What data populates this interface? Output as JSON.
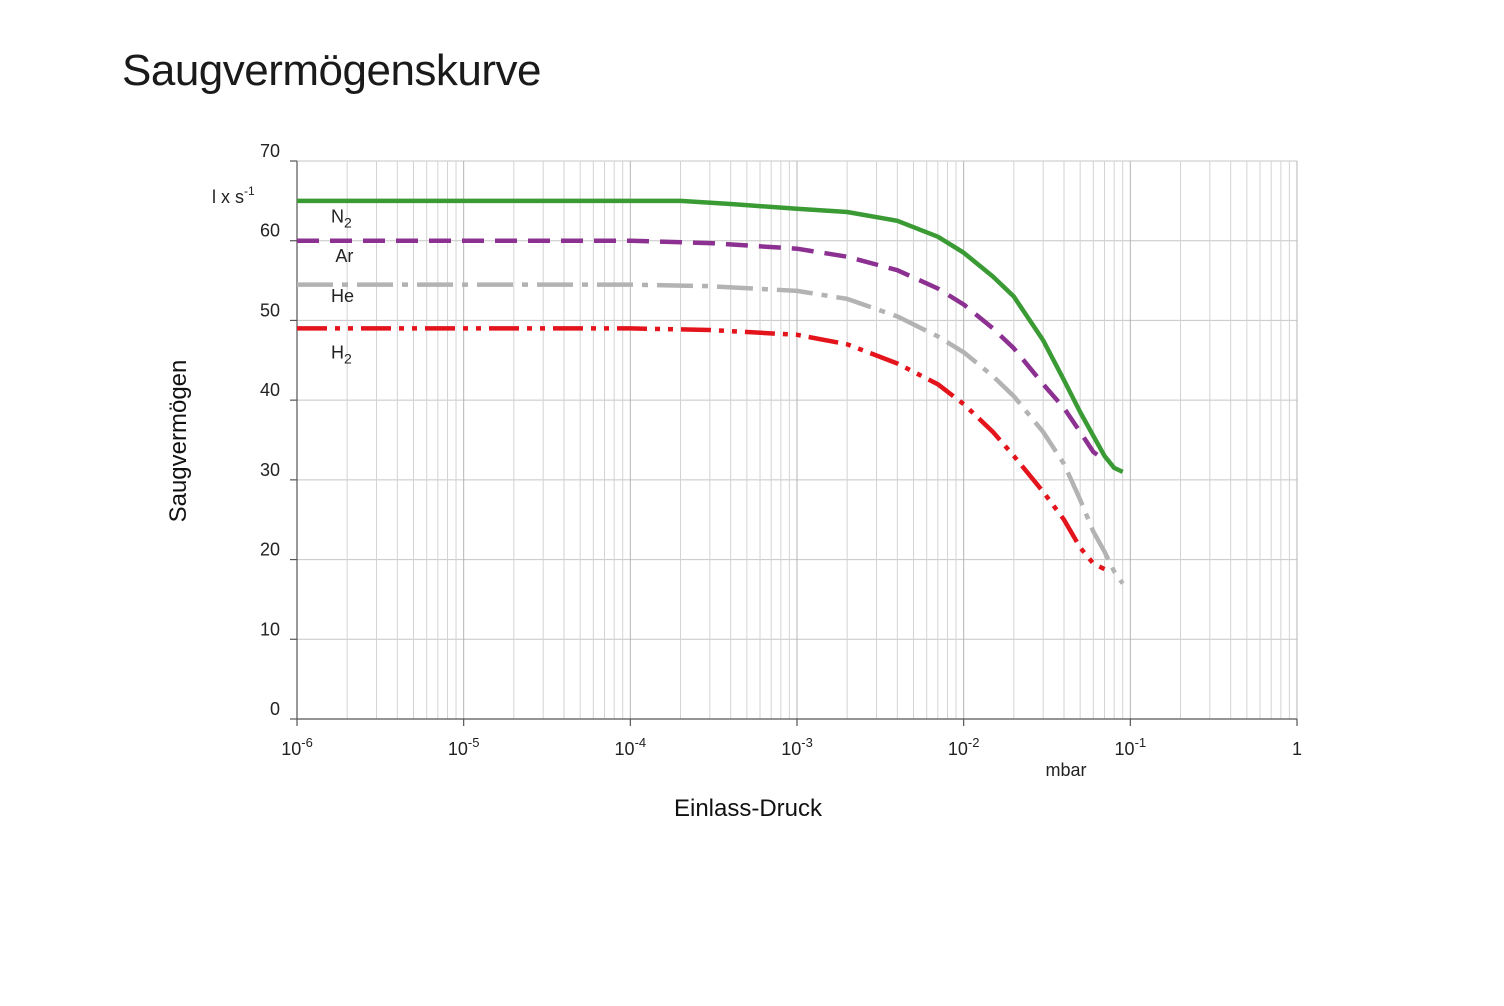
{
  "title": "Saugvermögenskurve",
  "chart_data": {
    "type": "line",
    "x_scale": "log",
    "x_unit_label": "mbar",
    "xlabel": "Einlass-Druck",
    "ylabel": "Saugvermögen",
    "y_unit_label": "l x s",
    "y_unit_exponent": "-1",
    "xlim": [
      1e-06,
      1
    ],
    "ylim": [
      0,
      70
    ],
    "grid": true,
    "x_ticks": [
      {
        "value": 1e-06,
        "base": "10",
        "exp": "-6"
      },
      {
        "value": 1e-05,
        "base": "10",
        "exp": "-5"
      },
      {
        "value": 0.0001,
        "base": "10",
        "exp": "-4"
      },
      {
        "value": 0.001,
        "base": "10",
        "exp": "-3"
      },
      {
        "value": 0.01,
        "base": "10",
        "exp": "-2"
      },
      {
        "value": 0.1,
        "base": "10",
        "exp": "-1"
      },
      {
        "value": 1,
        "base": "1",
        "exp": ""
      }
    ],
    "y_ticks": [
      {
        "value": 0,
        "label": "0"
      },
      {
        "value": 10,
        "label": "10"
      },
      {
        "value": 20,
        "label": "20"
      },
      {
        "value": 30,
        "label": "30"
      },
      {
        "value": 40,
        "label": "40"
      },
      {
        "value": 50,
        "label": "50"
      },
      {
        "value": 60,
        "label": "60"
      },
      {
        "value": 70,
        "label": "70"
      }
    ],
    "series": [
      {
        "name": "N2",
        "label_base": "N",
        "label_sub": "2",
        "label_anchor": [
          1.6e-06,
          62.3
        ],
        "color": "#3a9b35",
        "dash": "",
        "points": [
          [
            1e-06,
            65
          ],
          [
            2e-05,
            65
          ],
          [
            0.0001,
            65
          ],
          [
            0.0002,
            65
          ],
          [
            0.0004,
            64.6
          ],
          [
            0.001,
            64
          ],
          [
            0.002,
            63.6
          ],
          [
            0.004,
            62.5
          ],
          [
            0.007,
            60.5
          ],
          [
            0.01,
            58.5
          ],
          [
            0.015,
            55.5
          ],
          [
            0.02,
            53
          ],
          [
            0.03,
            47.5
          ],
          [
            0.04,
            42.5
          ],
          [
            0.05,
            38.5
          ],
          [
            0.06,
            35.5
          ],
          [
            0.07,
            33
          ],
          [
            0.08,
            31.5
          ],
          [
            0.09,
            31
          ]
        ]
      },
      {
        "name": "Ar",
        "label_base": "Ar",
        "label_sub": "",
        "label_anchor": [
          1.7e-06,
          57.3
        ],
        "color": "#8c3191",
        "dash": "22 11",
        "points": [
          [
            1e-06,
            60
          ],
          [
            2e-05,
            60
          ],
          [
            0.0001,
            60
          ],
          [
            0.0003,
            59.7
          ],
          [
            0.001,
            59
          ],
          [
            0.002,
            58
          ],
          [
            0.004,
            56.3
          ],
          [
            0.007,
            54
          ],
          [
            0.01,
            52
          ],
          [
            0.015,
            49
          ],
          [
            0.02,
            46.5
          ],
          [
            0.03,
            42
          ],
          [
            0.04,
            39
          ],
          [
            0.05,
            36
          ],
          [
            0.06,
            33.5
          ],
          [
            0.07,
            32.5
          ]
        ]
      },
      {
        "name": "He",
        "label_base": "He",
        "label_sub": "",
        "label_anchor": [
          1.6e-06,
          52.3
        ],
        "color": "#b3b3b3",
        "dash": "36 9 6 9",
        "points": [
          [
            1e-06,
            54.5
          ],
          [
            2e-05,
            54.5
          ],
          [
            0.0001,
            54.5
          ],
          [
            0.0003,
            54.3
          ],
          [
            0.001,
            53.7
          ],
          [
            0.002,
            52.7
          ],
          [
            0.004,
            50.5
          ],
          [
            0.007,
            48
          ],
          [
            0.01,
            46
          ],
          [
            0.015,
            43
          ],
          [
            0.02,
            40.5
          ],
          [
            0.03,
            36
          ],
          [
            0.04,
            32
          ],
          [
            0.05,
            27.5
          ],
          [
            0.06,
            23.5
          ],
          [
            0.07,
            21
          ],
          [
            0.08,
            18.5
          ],
          [
            0.09,
            17
          ]
        ]
      },
      {
        "name": "H2",
        "label_base": "H",
        "label_sub": "2",
        "label_anchor": [
          1.6e-06,
          45.2
        ],
        "color": "#e3141b",
        "dash": "30 8 5 8 5 8",
        "points": [
          [
            1e-06,
            49
          ],
          [
            2e-05,
            49
          ],
          [
            0.0001,
            49
          ],
          [
            0.0003,
            48.8
          ],
          [
            0.001,
            48.2
          ],
          [
            0.002,
            47
          ],
          [
            0.004,
            44.6
          ],
          [
            0.007,
            42
          ],
          [
            0.01,
            39.5
          ],
          [
            0.015,
            36
          ],
          [
            0.02,
            33
          ],
          [
            0.03,
            28.5
          ],
          [
            0.04,
            25
          ],
          [
            0.05,
            21.5
          ],
          [
            0.06,
            19.5
          ],
          [
            0.07,
            18.8
          ]
        ]
      }
    ]
  }
}
